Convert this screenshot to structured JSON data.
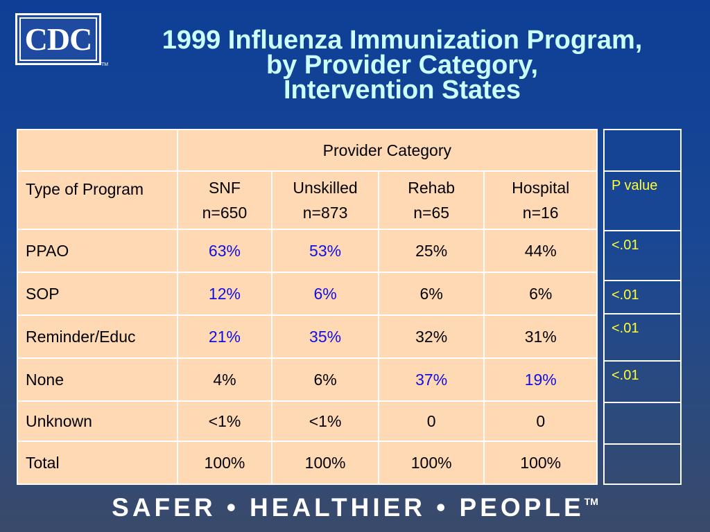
{
  "logo": {
    "text": "CDC",
    "tm": "TM"
  },
  "title": {
    "line1": "1999 Influenza Immunization Program,",
    "line2": "by Provider Category,",
    "line3": "Intervention States"
  },
  "table": {
    "group_header": "Provider Category",
    "type_label": "Type of Program",
    "columns": [
      {
        "name": "SNF",
        "n": "n=650"
      },
      {
        "name": "Unskilled",
        "n": "n=873"
      },
      {
        "name": "Rehab",
        "n": "n=65"
      },
      {
        "name": "Hospital",
        "n": "n=16"
      }
    ],
    "rows": [
      {
        "label": "PPAO",
        "values": [
          "63%",
          "53%",
          "25%",
          "44%"
        ]
      },
      {
        "label": "SOP",
        "values": [
          "12%",
          "6%",
          "6%",
          "6%"
        ]
      },
      {
        "label": "Reminder/Educ",
        "values": [
          "21%",
          "35%",
          "32%",
          "31%"
        ]
      },
      {
        "label": "None",
        "values": [
          "4%",
          "6%",
          "37%",
          "19%"
        ]
      },
      {
        "label": "Unknown",
        "values": [
          "<1%",
          "<1%",
          "0",
          "0"
        ]
      },
      {
        "label": "Total",
        "values": [
          "100%",
          "100%",
          "100%",
          "100%"
        ]
      }
    ],
    "highlight_color": "#1010e0",
    "cell_background": "#ffd8b4"
  },
  "pvalue": {
    "header": "P value",
    "values": [
      "<.01",
      "<.01",
      "<.01",
      "<.01"
    ],
    "text_color": "#ffff33"
  },
  "footer": {
    "text": "SAFER • HEALTHIER • PEOPLE",
    "tm": "TM"
  }
}
